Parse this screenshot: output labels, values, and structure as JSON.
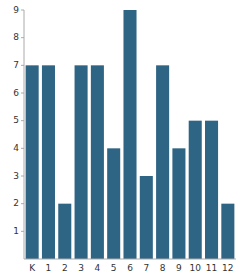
{
  "chart_data": {
    "type": "bar",
    "categories": [
      "K",
      "1",
      "2",
      "3",
      "4",
      "5",
      "6",
      "7",
      "8",
      "9",
      "10",
      "11",
      "12"
    ],
    "values": [
      7,
      7,
      2,
      7,
      7,
      4,
      9,
      3,
      7,
      4,
      5,
      5,
      2
    ],
    "color": "#2e6484",
    "ylim": [
      0,
      9
    ],
    "yticks": [
      1,
      2,
      3,
      4,
      5,
      6,
      7,
      8,
      9
    ],
    "grid": false
  }
}
